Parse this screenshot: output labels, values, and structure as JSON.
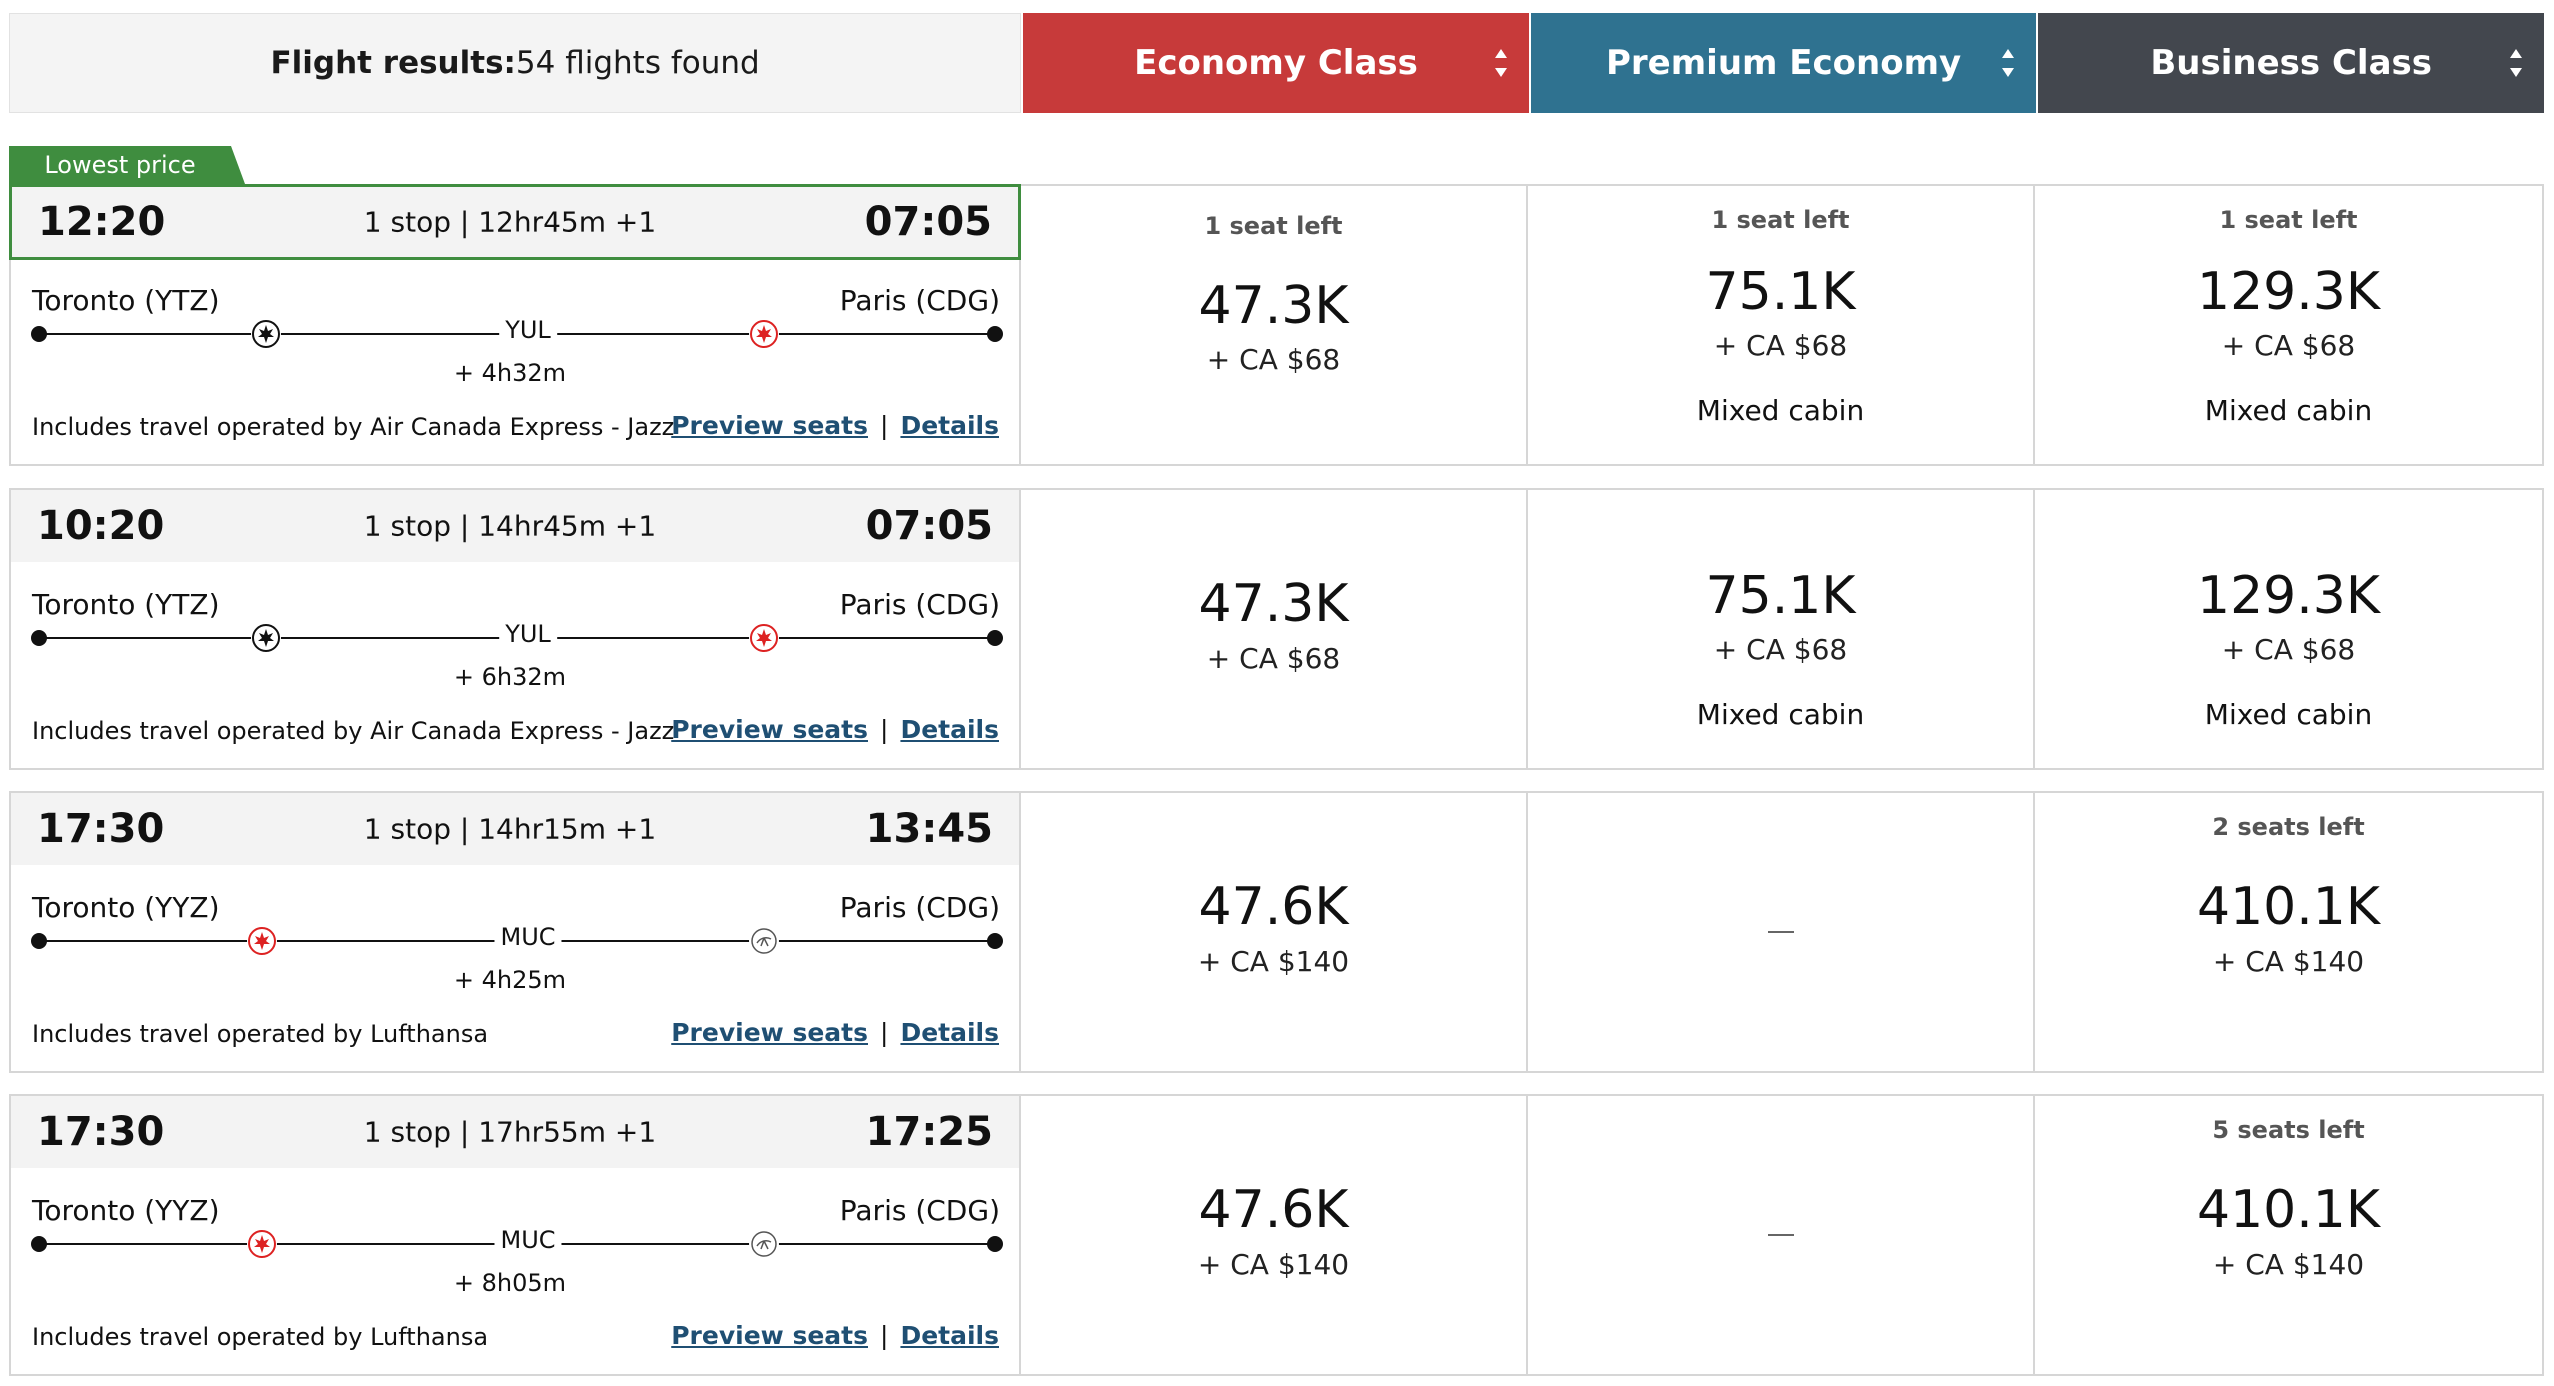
{
  "header": {
    "results_label": "Flight results:",
    "results_count": "54 flights found",
    "tabs": [
      {
        "label": "Economy Class",
        "color": "#c73a3a"
      },
      {
        "label": "Premium Economy",
        "color": "#2f7290"
      },
      {
        "label": "Business Class",
        "color": "#43474e"
      }
    ]
  },
  "badge": "Lowest price",
  "links": {
    "preview": "Preview seats",
    "separator": "|",
    "details": "Details"
  },
  "flights": [
    {
      "dep": "12:20",
      "arr": "07:05",
      "stops": "1 stop | 12hr45m +1",
      "origin": "Toronto (YTZ)",
      "dest": "Paris (CDG)",
      "via": "YUL",
      "layover": "+ 4h32m",
      "seg1_icon": "air-canada-express-icon",
      "seg2_icon": "air-canada-icon",
      "operated": "Includes travel operated by Air Canada Express - Jazz",
      "economy": {
        "seats": "1 seat left",
        "points": "47.3K",
        "fee": "+ CA $68"
      },
      "premium": {
        "seats": "1 seat left",
        "points": "75.1K",
        "fee": "+ CA $68",
        "mixed": "Mixed cabin"
      },
      "business": {
        "seats": "1 seat left",
        "points": "129.3K",
        "fee": "+ CA $68",
        "mixed": "Mixed cabin"
      }
    },
    {
      "dep": "10:20",
      "arr": "07:05",
      "stops": "1 stop | 14hr45m +1",
      "origin": "Toronto (YTZ)",
      "dest": "Paris (CDG)",
      "via": "YUL",
      "layover": "+ 6h32m",
      "seg1_icon": "air-canada-express-icon",
      "seg2_icon": "air-canada-icon",
      "operated": "Includes travel operated by Air Canada Express - Jazz",
      "economy": {
        "seats": "",
        "points": "47.3K",
        "fee": "+ CA $68"
      },
      "premium": {
        "seats": "",
        "points": "75.1K",
        "fee": "+ CA $68",
        "mixed": "Mixed cabin"
      },
      "business": {
        "seats": "",
        "points": "129.3K",
        "fee": "+ CA $68",
        "mixed": "Mixed cabin"
      }
    },
    {
      "dep": "17:30",
      "arr": "13:45",
      "stops": "1 stop | 14hr15m +1",
      "origin": "Toronto (YYZ)",
      "dest": "Paris (CDG)",
      "via": "MUC",
      "layover": "+ 4h25m",
      "seg1_icon": "air-canada-icon",
      "seg2_icon": "lufthansa-icon",
      "operated": "Includes travel operated by Lufthansa",
      "economy": {
        "seats": "",
        "points": "47.6K",
        "fee": "+ CA $140"
      },
      "premium": {
        "unavailable": true
      },
      "business": {
        "seats": "2 seats left",
        "points": "410.1K",
        "fee": "+ CA $140"
      }
    },
    {
      "dep": "17:30",
      "arr": "17:25",
      "stops": "1 stop | 17hr55m +1",
      "origin": "Toronto (YYZ)",
      "dest": "Paris (CDG)",
      "via": "MUC",
      "layover": "+ 8h05m",
      "seg1_icon": "air-canada-icon",
      "seg2_icon": "lufthansa-icon",
      "operated": "Includes travel operated by Lufthansa",
      "economy": {
        "seats": "",
        "points": "47.6K",
        "fee": "+ CA $140"
      },
      "premium": {
        "unavailable": true
      },
      "business": {
        "seats": "5 seats left",
        "points": "410.1K",
        "fee": "+ CA $140"
      }
    }
  ]
}
